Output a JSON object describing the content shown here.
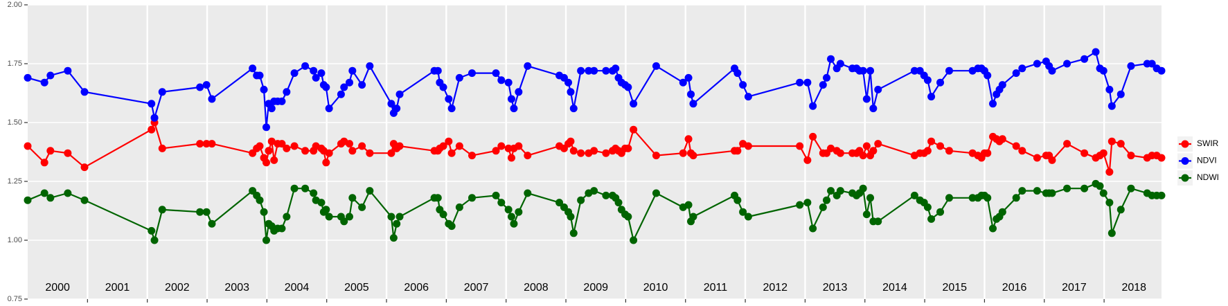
{
  "chart_data": {
    "type": "line",
    "x": [
      2000.0,
      2000.28,
      2000.38,
      2000.67,
      2000.95,
      2002.07,
      2002.12,
      2002.25,
      2002.88,
      2002.99,
      2003.08,
      2003.76,
      2003.83,
      2003.88,
      2003.95,
      2003.99,
      2004.03,
      2004.08,
      2004.12,
      2004.18,
      2004.25,
      2004.33,
      2004.46,
      2004.64,
      2004.78,
      2004.82,
      2004.91,
      2004.95,
      2004.99,
      2005.04,
      2005.24,
      2005.29,
      2005.38,
      2005.43,
      2005.59,
      2005.72,
      2006.08,
      2006.12,
      2006.17,
      2006.22,
      2006.8,
      2006.86,
      2006.89,
      2006.95,
      2007.04,
      2007.09,
      2007.22,
      2007.43,
      2007.83,
      2007.92,
      2008.04,
      2008.09,
      2008.13,
      2008.21,
      2008.36,
      2008.89,
      2008.97,
      2009.04,
      2009.08,
      2009.13,
      2009.25,
      2009.38,
      2009.47,
      2009.67,
      2009.78,
      2009.83,
      2009.88,
      2009.93,
      2009.99,
      2010.04,
      2010.13,
      2010.51,
      2010.96,
      2011.05,
      2011.09,
      2011.13,
      2011.82,
      2011.87,
      2011.96,
      2012.05,
      2012.91,
      2013.04,
      2013.13,
      2013.3,
      2013.36,
      2013.43,
      2013.53,
      2013.59,
      2013.79,
      2013.86,
      2013.91,
      2013.97,
      2014.03,
      2014.09,
      2014.14,
      2014.22,
      2014.83,
      2014.92,
      2014.99,
      2015.05,
      2015.11,
      2015.26,
      2015.41,
      2015.8,
      2015.89,
      2015.95,
      2016.0,
      2016.05,
      2016.14,
      2016.2,
      2016.25,
      2016.3,
      2016.53,
      2016.63,
      2016.88,
      2017.03,
      2017.08,
      2017.13,
      2017.38,
      2017.67,
      2017.86,
      2017.93,
      2017.99,
      2018.09,
      2018.13,
      2018.28,
      2018.45,
      2018.72,
      2018.8,
      2018.88,
      2018.96
    ],
    "series": [
      {
        "name": "SWIR",
        "color": "#ff0000",
        "values": [
          1.4,
          1.33,
          1.38,
          1.37,
          1.31,
          1.47,
          1.5,
          1.39,
          1.41,
          1.41,
          1.41,
          1.37,
          1.39,
          1.4,
          1.35,
          1.33,
          1.38,
          1.42,
          1.34,
          1.41,
          1.41,
          1.39,
          1.4,
          1.38,
          1.38,
          1.4,
          1.39,
          1.38,
          1.33,
          1.37,
          1.41,
          1.42,
          1.41,
          1.38,
          1.4,
          1.37,
          1.37,
          1.41,
          1.39,
          1.4,
          1.38,
          1.38,
          1.39,
          1.4,
          1.42,
          1.37,
          1.4,
          1.36,
          1.38,
          1.4,
          1.39,
          1.35,
          1.39,
          1.4,
          1.36,
          1.4,
          1.39,
          1.41,
          1.42,
          1.38,
          1.37,
          1.37,
          1.38,
          1.37,
          1.38,
          1.39,
          1.38,
          1.37,
          1.39,
          1.39,
          1.47,
          1.36,
          1.37,
          1.43,
          1.37,
          1.36,
          1.38,
          1.38,
          1.41,
          1.4,
          1.4,
          1.34,
          1.44,
          1.37,
          1.37,
          1.39,
          1.38,
          1.37,
          1.37,
          1.37,
          1.38,
          1.36,
          1.4,
          1.36,
          1.38,
          1.41,
          1.36,
          1.37,
          1.37,
          1.38,
          1.42,
          1.4,
          1.38,
          1.37,
          1.36,
          1.35,
          1.37,
          1.37,
          1.44,
          1.43,
          1.42,
          1.43,
          1.4,
          1.38,
          1.35,
          1.36,
          1.36,
          1.34,
          1.41,
          1.37,
          1.35,
          1.36,
          1.37,
          1.29,
          1.42,
          1.41,
          1.36,
          1.35,
          1.36,
          1.36,
          1.35
        ]
      },
      {
        "name": "NDVI",
        "color": "#0000ff",
        "values": [
          1.69,
          1.67,
          1.7,
          1.72,
          1.63,
          1.58,
          1.52,
          1.63,
          1.65,
          1.66,
          1.6,
          1.73,
          1.7,
          1.7,
          1.64,
          1.48,
          1.58,
          1.56,
          1.59,
          1.59,
          1.59,
          1.63,
          1.71,
          1.74,
          1.72,
          1.69,
          1.71,
          1.66,
          1.65,
          1.56,
          1.62,
          1.65,
          1.67,
          1.72,
          1.66,
          1.74,
          1.58,
          1.54,
          1.56,
          1.62,
          1.72,
          1.72,
          1.67,
          1.65,
          1.6,
          1.56,
          1.69,
          1.71,
          1.71,
          1.68,
          1.67,
          1.6,
          1.56,
          1.63,
          1.74,
          1.7,
          1.69,
          1.67,
          1.63,
          1.56,
          1.72,
          1.72,
          1.72,
          1.72,
          1.72,
          1.73,
          1.69,
          1.67,
          1.66,
          1.65,
          1.58,
          1.74,
          1.67,
          1.69,
          1.62,
          1.58,
          1.73,
          1.71,
          1.66,
          1.61,
          1.67,
          1.67,
          1.57,
          1.66,
          1.69,
          1.77,
          1.73,
          1.75,
          1.73,
          1.73,
          1.72,
          1.72,
          1.6,
          1.72,
          1.56,
          1.64,
          1.72,
          1.72,
          1.7,
          1.68,
          1.61,
          1.67,
          1.72,
          1.72,
          1.73,
          1.73,
          1.72,
          1.7,
          1.58,
          1.62,
          1.64,
          1.66,
          1.71,
          1.73,
          1.75,
          1.76,
          1.74,
          1.72,
          1.75,
          1.77,
          1.8,
          1.73,
          1.72,
          1.64,
          1.57,
          1.62,
          1.74,
          1.75,
          1.75,
          1.73,
          1.72
        ]
      },
      {
        "name": "NDWI",
        "color": "#006400",
        "values": [
          1.17,
          1.2,
          1.18,
          1.2,
          1.17,
          1.04,
          1.0,
          1.13,
          1.12,
          1.12,
          1.07,
          1.21,
          1.19,
          1.17,
          1.12,
          1.0,
          1.07,
          1.06,
          1.04,
          1.05,
          1.05,
          1.1,
          1.22,
          1.22,
          1.2,
          1.17,
          1.16,
          1.12,
          1.13,
          1.1,
          1.1,
          1.08,
          1.1,
          1.18,
          1.14,
          1.21,
          1.1,
          1.01,
          1.07,
          1.1,
          1.18,
          1.18,
          1.13,
          1.11,
          1.07,
          1.06,
          1.14,
          1.18,
          1.19,
          1.16,
          1.13,
          1.1,
          1.07,
          1.12,
          1.2,
          1.16,
          1.14,
          1.12,
          1.1,
          1.03,
          1.17,
          1.2,
          1.21,
          1.19,
          1.19,
          1.18,
          1.16,
          1.13,
          1.11,
          1.1,
          1.0,
          1.2,
          1.14,
          1.15,
          1.08,
          1.1,
          1.19,
          1.17,
          1.12,
          1.1,
          1.15,
          1.16,
          1.05,
          1.14,
          1.17,
          1.21,
          1.19,
          1.21,
          1.2,
          1.19,
          1.2,
          1.22,
          1.11,
          1.18,
          1.08,
          1.08,
          1.19,
          1.17,
          1.16,
          1.14,
          1.09,
          1.12,
          1.18,
          1.18,
          1.18,
          1.19,
          1.19,
          1.18,
          1.05,
          1.09,
          1.1,
          1.12,
          1.18,
          1.21,
          1.21,
          1.2,
          1.2,
          1.2,
          1.22,
          1.22,
          1.24,
          1.23,
          1.2,
          1.16,
          1.03,
          1.13,
          1.22,
          1.2,
          1.19,
          1.19,
          1.19
        ]
      }
    ],
    "xlim": [
      2000.0,
      2018.96
    ],
    "xticks": [
      {
        "value": 2000.5,
        "label": "2000"
      },
      {
        "value": 2001.5,
        "label": "2001"
      },
      {
        "value": 2002.5,
        "label": "2002"
      },
      {
        "value": 2003.5,
        "label": "2003"
      },
      {
        "value": 2004.5,
        "label": "2004"
      },
      {
        "value": 2005.5,
        "label": "2005"
      },
      {
        "value": 2006.5,
        "label": "2006"
      },
      {
        "value": 2007.5,
        "label": "2007"
      },
      {
        "value": 2008.5,
        "label": "2008"
      },
      {
        "value": 2009.5,
        "label": "2009"
      },
      {
        "value": 2010.5,
        "label": "2010"
      },
      {
        "value": 2011.5,
        "label": "2011"
      },
      {
        "value": 2012.5,
        "label": "2012"
      },
      {
        "value": 2013.5,
        "label": "2013"
      },
      {
        "value": 2014.5,
        "label": "2014"
      },
      {
        "value": 2015.5,
        "label": "2015"
      },
      {
        "value": 2016.5,
        "label": "2016"
      },
      {
        "value": 2017.5,
        "label": "2017"
      },
      {
        "value": 2018.5,
        "label": "2018"
      }
    ],
    "xgrid": [
      2001,
      2002,
      2003,
      2004,
      2005,
      2006,
      2007,
      2008,
      2009,
      2010,
      2011,
      2012,
      2013,
      2014,
      2015,
      2016,
      2017,
      2018
    ],
    "ylim": [
      0.75,
      2.0
    ],
    "yticks": [
      {
        "value": 0.75,
        "label": "0.75"
      },
      {
        "value": 1.0,
        "label": "1.00"
      },
      {
        "value": 1.25,
        "label": "1.25"
      },
      {
        "value": 1.5,
        "label": "1.50"
      },
      {
        "value": 1.75,
        "label": "1.75"
      },
      {
        "value": 2.0,
        "label": "2.00"
      }
    ],
    "grid": true,
    "legend": "right"
  }
}
